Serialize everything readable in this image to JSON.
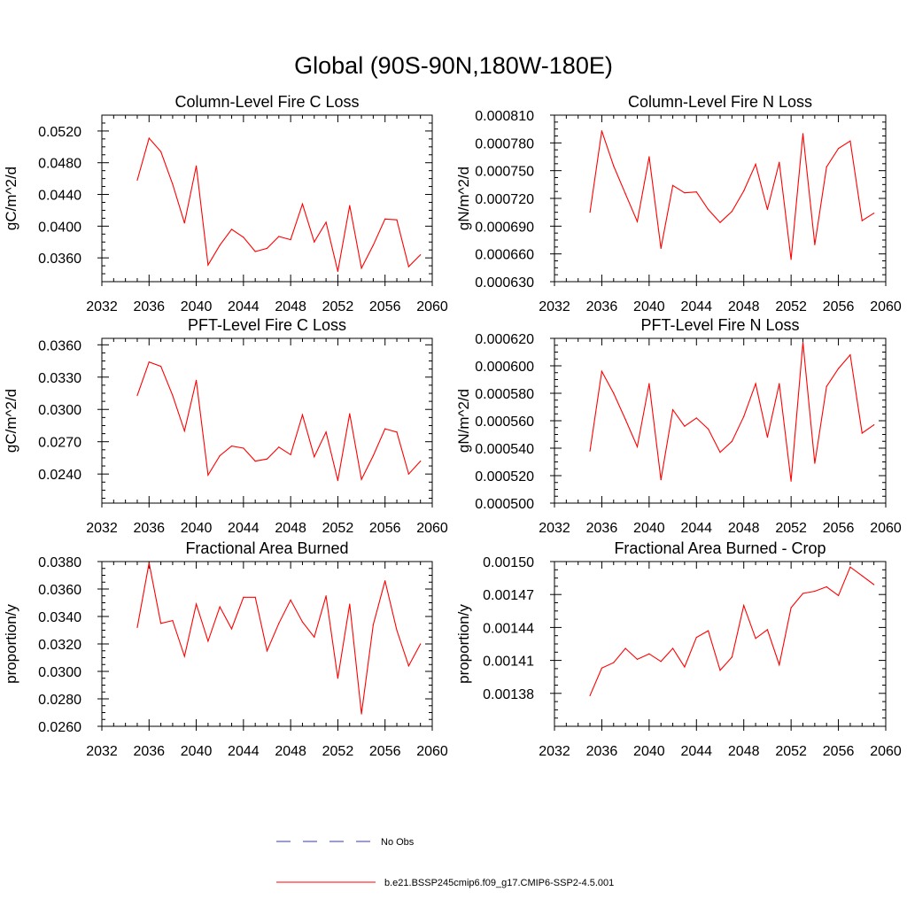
{
  "page": {
    "title": "Global (90S-90N,180W-180E)"
  },
  "legend": [
    {
      "label": "No Obs",
      "color": "#3333cc",
      "dash": true
    },
    {
      "label": "b.e21.BSSP245cmip6.f09_g17.CMIP6-SSP2-4.5.001",
      "color": "#ff0000",
      "dash": false
    }
  ],
  "chart_data": [
    {
      "type": "line",
      "title": "Column-Level Fire C Loss",
      "ylabel": "gC/m^2/d",
      "xlim": [
        2032,
        2060
      ],
      "xticks": [
        2032,
        2036,
        2040,
        2044,
        2048,
        2052,
        2056,
        2060
      ],
      "ylim": [
        0.033,
        0.054
      ],
      "yticks": [
        "0.0360",
        "0.0400",
        "0.0440",
        "0.0480",
        "0.0520"
      ],
      "series": [
        {
          "color": "#ff0000",
          "x": [
            2035,
            2036,
            2037,
            2038,
            2039,
            2040,
            2041,
            2042,
            2043,
            2044,
            2045,
            2046,
            2047,
            2048,
            2049,
            2050,
            2051,
            2052,
            2053,
            2054,
            2055,
            2056,
            2057,
            2058,
            2059
          ],
          "values": [
            0.0458,
            0.0511,
            0.0494,
            0.0453,
            0.0404,
            0.0476,
            0.0351,
            0.0376,
            0.0396,
            0.0386,
            0.0368,
            0.0372,
            0.0387,
            0.0383,
            0.0428,
            0.038,
            0.0405,
            0.0343,
            0.0426,
            0.0347,
            0.0376,
            0.0409,
            0.0408,
            0.0349,
            0.0364
          ]
        }
      ]
    },
    {
      "type": "line",
      "title": "Column-Level Fire N Loss",
      "ylabel": "gN/m^2/d",
      "xlim": [
        2032,
        2060
      ],
      "xticks": [
        2032,
        2036,
        2040,
        2044,
        2048,
        2052,
        2056,
        2060
      ],
      "ylim": [
        0.00063,
        0.00081
      ],
      "yticks": [
        "0.000630",
        "0.000660",
        "0.000690",
        "0.000720",
        "0.000750",
        "0.000780",
        "0.000810"
      ],
      "series": [
        {
          "color": "#ff0000",
          "x": [
            2035,
            2036,
            2037,
            2038,
            2039,
            2040,
            2041,
            2042,
            2043,
            2044,
            2045,
            2046,
            2047,
            2048,
            2049,
            2050,
            2051,
            2052,
            2053,
            2054,
            2055,
            2056,
            2057,
            2058,
            2059
          ],
          "values": [
            0.000705,
            0.000793,
            0.000755,
            0.000725,
            0.000695,
            0.000765,
            0.000666,
            0.000734,
            0.000726,
            0.000727,
            0.000708,
            0.000694,
            0.000706,
            0.000728,
            0.000757,
            0.000708,
            0.000759,
            0.000654,
            0.00079,
            0.00067,
            0.000754,
            0.000774,
            0.000782,
            0.000696,
            0.000704
          ]
        }
      ]
    },
    {
      "type": "line",
      "title": "PFT-Level Fire C Loss",
      "ylabel": "gC/m^2/d",
      "xlim": [
        2032,
        2060
      ],
      "xticks": [
        2032,
        2036,
        2040,
        2044,
        2048,
        2052,
        2056,
        2060
      ],
      "ylim": [
        0.0213,
        0.0366
      ],
      "yticks": [
        "0.0240",
        "0.0270",
        "0.0300",
        "0.0330",
        "0.0360"
      ],
      "series": [
        {
          "color": "#ff0000",
          "x": [
            2035,
            2036,
            2037,
            2038,
            2039,
            2040,
            2041,
            2042,
            2043,
            2044,
            2045,
            2046,
            2047,
            2048,
            2049,
            2050,
            2051,
            2052,
            2053,
            2054,
            2055,
            2056,
            2057,
            2058,
            2059
          ],
          "values": [
            0.0313,
            0.0344,
            0.034,
            0.0313,
            0.028,
            0.0327,
            0.0239,
            0.0257,
            0.0266,
            0.0264,
            0.0252,
            0.0254,
            0.0265,
            0.0258,
            0.0295,
            0.0256,
            0.0279,
            0.0234,
            0.0296,
            0.0235,
            0.0257,
            0.0282,
            0.0279,
            0.024,
            0.0252
          ]
        }
      ]
    },
    {
      "type": "line",
      "title": "PFT-Level Fire N Loss",
      "ylabel": "gN/m^2/d",
      "xlim": [
        2032,
        2060
      ],
      "xticks": [
        2032,
        2036,
        2040,
        2044,
        2048,
        2052,
        2056,
        2060
      ],
      "ylim": [
        0.0005,
        0.00062
      ],
      "yticks": [
        "0.000500",
        "0.000520",
        "0.000540",
        "0.000560",
        "0.000580",
        "0.000600",
        "0.000620"
      ],
      "series": [
        {
          "color": "#ff0000",
          "x": [
            2035,
            2036,
            2037,
            2038,
            2039,
            2040,
            2041,
            2042,
            2043,
            2044,
            2045,
            2046,
            2047,
            2048,
            2049,
            2050,
            2051,
            2052,
            2053,
            2054,
            2055,
            2056,
            2057,
            2058,
            2059
          ],
          "values": [
            0.000538,
            0.000596,
            0.00058,
            0.000561,
            0.000541,
            0.000587,
            0.000517,
            0.000568,
            0.000556,
            0.000562,
            0.000554,
            0.000537,
            0.000545,
            0.000563,
            0.000587,
            0.000548,
            0.000587,
            0.000516,
            0.000617,
            0.000529,
            0.000585,
            0.000598,
            0.000608,
            0.000551,
            0.000557
          ]
        }
      ]
    },
    {
      "type": "line",
      "title": "Fractional Area Burned",
      "ylabel": "proportion/y",
      "xlim": [
        2032,
        2060
      ],
      "xticks": [
        2032,
        2036,
        2040,
        2044,
        2048,
        2052,
        2056,
        2060
      ],
      "ylim": [
        0.026,
        0.038
      ],
      "yticks": [
        "0.0260",
        "0.0280",
        "0.0300",
        "0.0320",
        "0.0340",
        "0.0360",
        "0.0380"
      ],
      "series": [
        {
          "color": "#ff0000",
          "x": [
            2035,
            2036,
            2037,
            2038,
            2039,
            2040,
            2041,
            2042,
            2043,
            2044,
            2045,
            2046,
            2047,
            2048,
            2049,
            2050,
            2051,
            2052,
            2053,
            2054,
            2055,
            2056,
            2057,
            2058,
            2059
          ],
          "values": [
            0.0332,
            0.0379,
            0.0335,
            0.0337,
            0.0311,
            0.0349,
            0.0322,
            0.0347,
            0.0331,
            0.0354,
            0.0354,
            0.0315,
            0.0335,
            0.0352,
            0.0336,
            0.0325,
            0.0355,
            0.0295,
            0.0349,
            0.0269,
            0.0334,
            0.0366,
            0.033,
            0.0304,
            0.032
          ]
        }
      ]
    },
    {
      "type": "line",
      "title": "Fractional Area Burned - Crop",
      "ylabel": "proportion/y",
      "xlim": [
        2032,
        2060
      ],
      "xticks": [
        2032,
        2036,
        2040,
        2044,
        2048,
        2052,
        2056,
        2060
      ],
      "ylim": [
        0.00135,
        0.0015
      ],
      "yticks": [
        "0.00138",
        "0.00141",
        "0.00144",
        "0.00147",
        "0.00150"
      ],
      "series": [
        {
          "color": "#ff0000",
          "x": [
            2035,
            2036,
            2037,
            2038,
            2039,
            2040,
            2041,
            2042,
            2043,
            2044,
            2045,
            2046,
            2047,
            2048,
            2049,
            2050,
            2051,
            2052,
            2053,
            2054,
            2055,
            2056,
            2057,
            2058,
            2059
          ],
          "values": [
            0.001378,
            0.001403,
            0.001408,
            0.001421,
            0.001411,
            0.001416,
            0.001409,
            0.001421,
            0.001404,
            0.001431,
            0.001437,
            0.001401,
            0.001413,
            0.00146,
            0.00143,
            0.001438,
            0.001406,
            0.001458,
            0.001471,
            0.001473,
            0.001477,
            0.001469,
            0.001495,
            0.001487,
            0.001479
          ]
        }
      ]
    }
  ]
}
